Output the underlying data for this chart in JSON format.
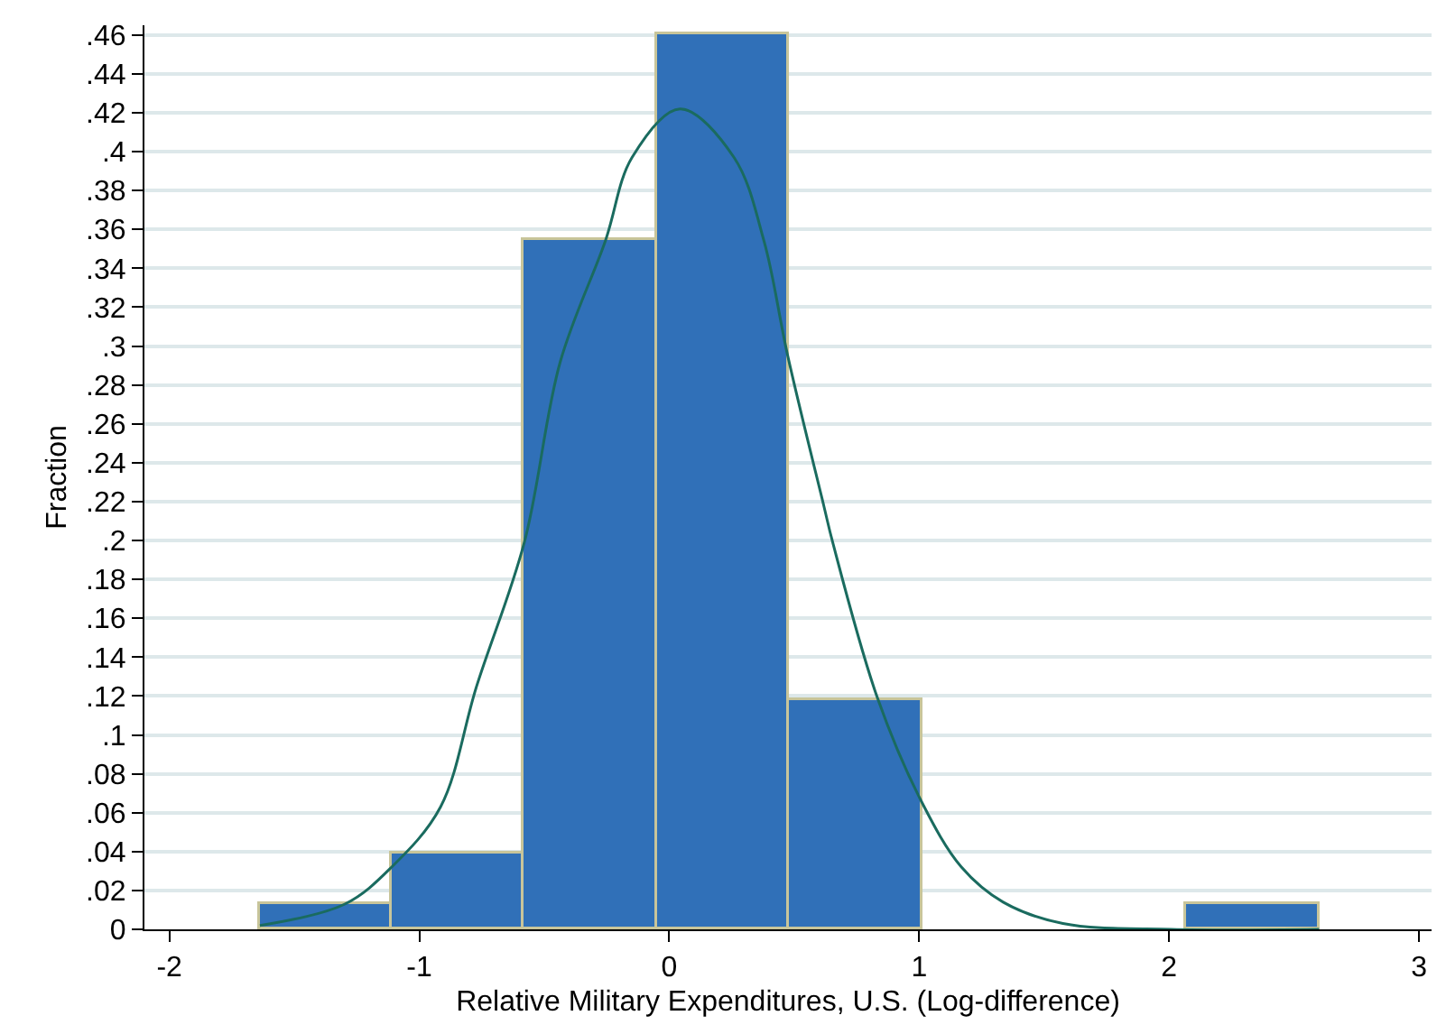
{
  "chart_data": {
    "type": "histogram",
    "xlabel": "Relative Military Expenditures, U.S. (Log-difference)",
    "ylabel": "Fraction",
    "bins": [
      -1.64,
      -1.11,
      -0.58,
      -0.05,
      0.48,
      1.01,
      1.54,
      2.07,
      2.6
    ],
    "values": [
      0.013,
      0.039,
      0.355,
      0.46,
      0.118,
      0,
      0,
      0.013
    ],
    "color": "#3070b8",
    "series": [
      {
        "type": "line",
        "color": "#1a6b5f",
        "marker": "none",
        "line_style": "solid",
        "x": [
          -1.638,
          -1.298,
          -1.111,
          -0.915,
          -0.771,
          -0.58,
          -0.436,
          -0.256,
          -0.149,
          0.043,
          0.259,
          0.379,
          0.474,
          0.618,
          0.654,
          0.833,
          1.008,
          1.169,
          1.336,
          1.575,
          2.007,
          2.6
        ],
        "values": [
          0.002,
          0.013,
          0.032,
          0.063,
          0.125,
          0.199,
          0.292,
          0.354,
          0.397,
          0.422,
          0.397,
          0.354,
          0.295,
          0.218,
          0.199,
          0.119,
          0.066,
          0.032,
          0.014,
          0.003,
          0,
          0
        ]
      }
    ],
    "xlim": [
      -2.1,
      3.05
    ],
    "xticks": [
      -2,
      -1,
      0,
      1,
      2,
      3
    ],
    "ylim": [
      0,
      0.465
    ],
    "yticks": [
      0,
      {
        "value": 0.02,
        "label": ".02"
      },
      {
        "value": 0.04,
        "label": ".04"
      },
      {
        "value": 0.06,
        "label": ".06"
      },
      {
        "value": 0.08,
        "label": ".08"
      },
      {
        "value": 0.1,
        "label": ".1"
      },
      {
        "value": 0.12,
        "label": ".12"
      },
      {
        "value": 0.14,
        "label": ".14"
      },
      {
        "value": 0.16,
        "label": ".16"
      },
      {
        "value": 0.18,
        "label": ".18"
      },
      {
        "value": 0.2,
        "label": ".2"
      },
      {
        "value": 0.22,
        "label": ".22"
      },
      {
        "value": 0.24,
        "label": ".24"
      },
      {
        "value": 0.26,
        "label": ".26"
      },
      {
        "value": 0.28,
        "label": ".28"
      },
      {
        "value": 0.3,
        "label": ".3"
      },
      {
        "value": 0.32,
        "label": ".32"
      },
      {
        "value": 0.34,
        "label": ".34"
      },
      {
        "value": 0.36,
        "label": ".36"
      },
      {
        "value": 0.38,
        "label": ".38"
      },
      {
        "value": 0.4,
        "label": ".4"
      },
      {
        "value": 0.42,
        "label": ".42"
      },
      {
        "value": 0.44,
        "label": ".44"
      },
      {
        "value": 0.46,
        "label": ".46"
      }
    ],
    "grid": "y",
    "legend": false
  }
}
